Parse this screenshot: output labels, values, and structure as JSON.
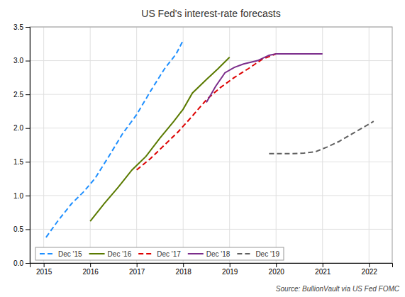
{
  "chart_data": {
    "type": "line",
    "title": "US Fed's interest-rate forecasts",
    "annotations": [
      "Source: BullionVault via US Fed FOMC"
    ],
    "xlim": [
      2014.7,
      2022.5
    ],
    "ylim": [
      0.0,
      3.5
    ],
    "xticks": [
      2015,
      2016,
      2017,
      2018,
      2019,
      2020,
      2021,
      2022
    ],
    "yticks": [
      {
        "value": 0.0,
        "label": "0.0"
      },
      0.5,
      {
        "value": 1.0,
        "label": "1.0"
      },
      1.5,
      {
        "value": 2.0,
        "label": "2.0"
      },
      2.5,
      {
        "value": 3.0,
        "label": "3.0"
      },
      3.5
    ],
    "grid": true,
    "legend": "lower left",
    "series": [
      {
        "name": "Dec '15",
        "color": "#1E8FFF",
        "line_style": "dashed",
        "x": [
          2015.05,
          2015.3,
          2015.6,
          2015.85,
          2016.1,
          2016.4,
          2016.7,
          2017.0,
          2017.3,
          2017.6,
          2017.85,
          2018.0
        ],
        "values": [
          0.38,
          0.62,
          0.88,
          1.05,
          1.25,
          1.58,
          1.92,
          2.2,
          2.55,
          2.88,
          3.1,
          3.3
        ]
      },
      {
        "name": "Dec '16",
        "color": "#5A7A00",
        "line_style": "solid",
        "x": [
          2016.0,
          2016.3,
          2016.6,
          2016.9,
          2017.2,
          2017.5,
          2017.8,
          2018.0,
          2018.2,
          2018.5,
          2018.75,
          2019.0
        ],
        "values": [
          0.62,
          0.88,
          1.12,
          1.38,
          1.58,
          1.85,
          2.1,
          2.28,
          2.52,
          2.72,
          2.88,
          3.05
        ]
      },
      {
        "name": "Dec '17",
        "color": "#DD0000",
        "line_style": "dashed",
        "x": [
          2017.0,
          2017.3,
          2017.6,
          2017.9,
          2018.2,
          2018.5,
          2018.8,
          2019.1,
          2019.4,
          2019.7,
          2020.0
        ],
        "values": [
          1.38,
          1.55,
          1.75,
          1.95,
          2.18,
          2.42,
          2.6,
          2.75,
          2.88,
          3.02,
          3.1
        ]
      },
      {
        "name": "Dec '18",
        "color": "#7B2D8B",
        "line_style": "solid",
        "x": [
          2018.5,
          2018.7,
          2018.9,
          2019.1,
          2019.3,
          2019.6,
          2019.85,
          2020.0,
          2020.3,
          2020.6,
          2021.0
        ],
        "values": [
          2.38,
          2.62,
          2.82,
          2.9,
          2.95,
          3.0,
          3.08,
          3.1,
          3.1,
          3.1,
          3.1
        ]
      },
      {
        "name": "Dec '19",
        "color": "#606060",
        "line_style": "dashed",
        "x": [
          2019.85,
          2020.1,
          2020.35,
          2020.6,
          2020.85,
          2021.1,
          2021.35,
          2021.6,
          2021.85,
          2022.1
        ],
        "values": [
          1.62,
          1.62,
          1.62,
          1.63,
          1.65,
          1.72,
          1.8,
          1.9,
          2.0,
          2.1
        ]
      }
    ]
  }
}
